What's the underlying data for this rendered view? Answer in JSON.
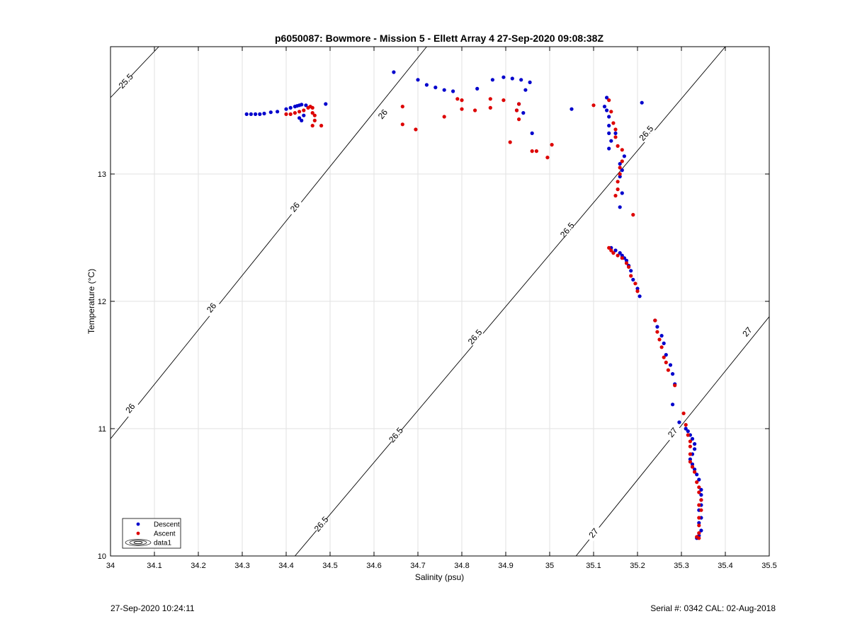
{
  "footer": {
    "timestamp": "27-Sep-2020 10:24:11",
    "serial_cal": "Serial #: 0342  CAL: 02-Aug-2018"
  },
  "colors": {
    "descent": "#0000cc",
    "ascent": "#dd0000",
    "isopycnal": "#000000",
    "grid": "#e2e2e2"
  },
  "chart_data": {
    "type": "scatter",
    "title": "p6050087: Bowmore - Mission 5 - Ellett Array 4 27-Sep-2020 09:08:38Z",
    "xlabel": "Salinity (psu)",
    "ylabel": "Temperature (°C)",
    "xlim": [
      34,
      35.5
    ],
    "ylim": [
      10,
      14
    ],
    "x_ticks": [
      "34",
      "34.1",
      "34.2",
      "34.3",
      "34.4",
      "34.5",
      "34.6",
      "34.7",
      "34.8",
      "34.9",
      "35",
      "35.1",
      "35.2",
      "35.3",
      "35.4",
      "35.5"
    ],
    "y_ticks": [
      "10",
      "11",
      "12",
      "13"
    ],
    "grid": true,
    "legend": {
      "placement": "bottom-left",
      "entries": [
        "Descent",
        "Ascent",
        "data1"
      ]
    },
    "isopycnals": [
      {
        "value": "25.5",
        "points": [
          [
            34.0,
            13.6
          ],
          [
            34.11,
            14.0
          ]
        ],
        "labels": [
          [
            34.035,
            13.73
          ]
        ]
      },
      {
        "value": "26",
        "points": [
          [
            34.0,
            10.92
          ],
          [
            34.72,
            14.0
          ]
        ],
        "labels": [
          [
            34.045,
            11.16
          ],
          [
            34.23,
            11.95
          ],
          [
            34.42,
            12.74
          ],
          [
            34.62,
            13.47
          ]
        ]
      },
      {
        "value": "26.5",
        "points": [
          [
            34.42,
            10.0
          ],
          [
            35.4,
            14.0
          ]
        ],
        "labels": [
          [
            34.48,
            10.25
          ],
          [
            34.65,
            10.95
          ],
          [
            34.83,
            11.72
          ],
          [
            35.04,
            12.56
          ],
          [
            35.22,
            13.32
          ]
        ]
      },
      {
        "value": "27",
        "points": [
          [
            35.06,
            10.0
          ],
          [
            35.5,
            11.88
          ]
        ],
        "labels": [
          [
            35.1,
            10.18
          ],
          [
            35.28,
            10.97
          ],
          [
            35.45,
            11.76
          ]
        ]
      }
    ],
    "series": [
      {
        "name": "Descent",
        "marker": "dot",
        "points": [
          [
            34.31,
            13.47
          ],
          [
            34.32,
            13.47
          ],
          [
            34.33,
            13.47
          ],
          [
            34.34,
            13.47
          ],
          [
            34.35,
            13.475
          ],
          [
            34.365,
            13.485
          ],
          [
            34.38,
            13.49
          ],
          [
            34.4,
            13.51
          ],
          [
            34.41,
            13.52
          ],
          [
            34.42,
            13.53
          ],
          [
            34.425,
            13.535
          ],
          [
            34.43,
            13.54
          ],
          [
            34.435,
            13.545
          ],
          [
            34.445,
            13.54
          ],
          [
            34.43,
            13.44
          ],
          [
            34.435,
            13.42
          ],
          [
            34.44,
            13.46
          ],
          [
            34.49,
            13.55
          ],
          [
            34.645,
            13.8
          ],
          [
            34.7,
            13.74
          ],
          [
            34.72,
            13.7
          ],
          [
            34.74,
            13.68
          ],
          [
            34.76,
            13.66
          ],
          [
            34.78,
            13.65
          ],
          [
            34.835,
            13.67
          ],
          [
            34.87,
            13.74
          ],
          [
            34.895,
            13.76
          ],
          [
            34.915,
            13.75
          ],
          [
            34.935,
            13.74
          ],
          [
            34.955,
            13.72
          ],
          [
            34.945,
            13.66
          ],
          [
            34.93,
            13.55
          ],
          [
            34.925,
            13.5
          ],
          [
            34.94,
            13.48
          ],
          [
            34.96,
            13.32
          ],
          [
            35.05,
            13.51
          ],
          [
            35.13,
            13.6
          ],
          [
            35.125,
            13.53
          ],
          [
            35.13,
            13.5
          ],
          [
            35.135,
            13.45
          ],
          [
            35.135,
            13.38
          ],
          [
            35.135,
            13.32
          ],
          [
            35.14,
            13.26
          ],
          [
            35.135,
            13.2
          ],
          [
            35.15,
            13.32
          ],
          [
            35.16,
            13.08
          ],
          [
            35.165,
            13.03
          ],
          [
            35.16,
            12.98
          ],
          [
            35.165,
            12.85
          ],
          [
            35.16,
            12.74
          ],
          [
            35.17,
            13.14
          ],
          [
            35.21,
            13.56
          ],
          [
            35.14,
            12.42
          ],
          [
            35.15,
            12.4
          ],
          [
            35.16,
            12.38
          ],
          [
            35.165,
            12.36
          ],
          [
            35.17,
            12.34
          ],
          [
            35.175,
            12.32
          ],
          [
            35.18,
            12.28
          ],
          [
            35.185,
            12.24
          ],
          [
            35.19,
            12.17
          ],
          [
            35.2,
            12.1
          ],
          [
            35.205,
            12.04
          ],
          [
            35.24,
            11.85
          ],
          [
            35.245,
            11.8
          ],
          [
            35.255,
            11.73
          ],
          [
            35.26,
            11.67
          ],
          [
            35.265,
            11.58
          ],
          [
            35.275,
            11.5
          ],
          [
            35.28,
            11.43
          ],
          [
            35.285,
            11.35
          ],
          [
            35.28,
            11.19
          ],
          [
            35.295,
            11.05
          ],
          [
            35.31,
            11.0
          ],
          [
            35.315,
            10.98
          ],
          [
            35.32,
            10.95
          ],
          [
            35.325,
            10.92
          ],
          [
            35.33,
            10.88
          ],
          [
            35.33,
            10.84
          ],
          [
            35.325,
            10.8
          ],
          [
            35.32,
            10.76
          ],
          [
            35.325,
            10.72
          ],
          [
            35.33,
            10.68
          ],
          [
            35.335,
            10.64
          ],
          [
            35.34,
            10.6
          ],
          [
            35.345,
            10.52
          ],
          [
            35.345,
            10.48
          ],
          [
            35.345,
            10.44
          ],
          [
            35.345,
            10.4
          ],
          [
            35.34,
            10.36
          ],
          [
            35.345,
            10.3
          ],
          [
            35.34,
            10.26
          ],
          [
            35.345,
            10.2
          ],
          [
            35.34,
            10.16
          ],
          [
            35.335,
            10.14
          ]
        ]
      },
      {
        "name": "Ascent",
        "marker": "dot",
        "points": [
          [
            34.4,
            13.47
          ],
          [
            34.41,
            13.47
          ],
          [
            34.42,
            13.48
          ],
          [
            34.43,
            13.49
          ],
          [
            34.44,
            13.5
          ],
          [
            34.45,
            13.52
          ],
          [
            34.455,
            13.53
          ],
          [
            34.46,
            13.52
          ],
          [
            34.46,
            13.48
          ],
          [
            34.465,
            13.46
          ],
          [
            34.465,
            13.42
          ],
          [
            34.46,
            13.38
          ],
          [
            34.48,
            13.38
          ],
          [
            34.665,
            13.53
          ],
          [
            34.665,
            13.39
          ],
          [
            34.695,
            13.35
          ],
          [
            34.76,
            13.45
          ],
          [
            34.79,
            13.59
          ],
          [
            34.8,
            13.58
          ],
          [
            34.8,
            13.51
          ],
          [
            34.83,
            13.5
          ],
          [
            34.865,
            13.59
          ],
          [
            34.865,
            13.52
          ],
          [
            34.895,
            13.58
          ],
          [
            34.91,
            13.25
          ],
          [
            34.925,
            13.5
          ],
          [
            34.93,
            13.43
          ],
          [
            34.93,
            13.55
          ],
          [
            34.96,
            13.18
          ],
          [
            34.97,
            13.18
          ],
          [
            34.995,
            13.13
          ],
          [
            35.005,
            13.23
          ],
          [
            35.1,
            13.54
          ],
          [
            35.135,
            13.58
          ],
          [
            35.14,
            13.49
          ],
          [
            35.145,
            13.4
          ],
          [
            35.15,
            13.35
          ],
          [
            35.15,
            13.29
          ],
          [
            35.155,
            13.22
          ],
          [
            35.165,
            13.19
          ],
          [
            35.165,
            13.1
          ],
          [
            35.16,
            13.05
          ],
          [
            35.16,
            13.0
          ],
          [
            35.155,
            12.94
          ],
          [
            35.155,
            12.88
          ],
          [
            35.15,
            12.83
          ],
          [
            35.19,
            12.68
          ],
          [
            35.135,
            12.42
          ],
          [
            35.14,
            12.4
          ],
          [
            35.145,
            12.38
          ],
          [
            35.155,
            12.36
          ],
          [
            35.165,
            12.34
          ],
          [
            35.175,
            12.3
          ],
          [
            35.18,
            12.27
          ],
          [
            35.185,
            12.2
          ],
          [
            35.195,
            12.14
          ],
          [
            35.2,
            12.08
          ],
          [
            35.24,
            11.85
          ],
          [
            35.245,
            11.76
          ],
          [
            35.25,
            11.7
          ],
          [
            35.255,
            11.64
          ],
          [
            35.26,
            11.56
          ],
          [
            35.265,
            11.52
          ],
          [
            35.27,
            11.46
          ],
          [
            35.285,
            11.34
          ],
          [
            35.305,
            11.12
          ],
          [
            35.31,
            11.03
          ],
          [
            35.315,
            10.95
          ],
          [
            35.32,
            10.9
          ],
          [
            35.32,
            10.86
          ],
          [
            35.32,
            10.8
          ],
          [
            35.32,
            10.74
          ],
          [
            35.325,
            10.7
          ],
          [
            35.33,
            10.66
          ],
          [
            35.335,
            10.58
          ],
          [
            35.34,
            10.54
          ],
          [
            35.34,
            10.5
          ],
          [
            35.345,
            10.44
          ],
          [
            35.34,
            10.4
          ],
          [
            35.345,
            10.36
          ],
          [
            35.34,
            10.3
          ],
          [
            35.34,
            10.24
          ],
          [
            35.34,
            10.18
          ],
          [
            35.335,
            10.15
          ],
          [
            35.34,
            10.14
          ]
        ]
      }
    ]
  }
}
